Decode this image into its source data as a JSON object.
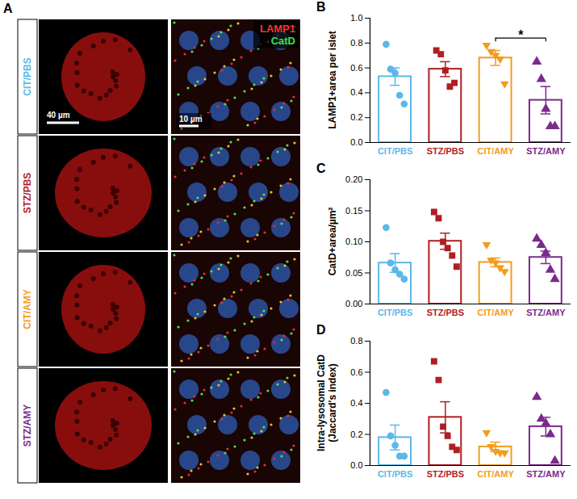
{
  "panel_A": {
    "letter": "A",
    "rows": [
      "CIT/PBS",
      "STZ/PBS",
      "CIT/AMY",
      "STZ/AMY"
    ],
    "row_colors": [
      "#5bb8e8",
      "#b01e23",
      "#f39c1e",
      "#7b2a8c"
    ],
    "stains": [
      {
        "text": "LAMP1",
        "color": "#ff3030"
      },
      {
        "text": "CatD",
        "color": "#40e040"
      }
    ],
    "scale_bars": [
      "40 µm",
      "10 µm"
    ]
  },
  "chart_data": [
    {
      "type": "bar",
      "panel": "B",
      "ylabel": "LAMP1+area per islet",
      "categories": [
        "CIT/PBS",
        "STZ/PBS",
        "CIT/AMY",
        "STZ/AMY"
      ],
      "values": [
        0.53,
        0.59,
        0.68,
        0.34
      ],
      "errors": [
        0.07,
        0.06,
        0.06,
        0.11
      ],
      "points": [
        [
          0.79,
          0.59,
          0.56,
          0.38,
          0.31
        ],
        [
          0.74,
          0.71,
          0.58,
          0.45,
          0.48
        ],
        [
          0.78,
          0.73,
          0.7,
          0.67,
          0.47
        ],
        [
          0.65,
          0.51,
          0.27,
          0.13,
          0.13
        ]
      ],
      "colors": [
        "#5bb8e8",
        "#b01e23",
        "#f39c1e",
        "#7b2a8c"
      ],
      "markers": [
        "circle",
        "square",
        "triangle-down",
        "triangle"
      ],
      "ylim": [
        0,
        1.0
      ],
      "yticks": [
        {
          "value": 0,
          "label": "0.0"
        },
        {
          "value": 0.2,
          "label": "0.2"
        },
        {
          "value": 0.4,
          "label": "0.4"
        },
        {
          "value": 0.6,
          "label": "0.6"
        },
        {
          "value": 0.8,
          "label": "0.8"
        },
        {
          "value": 1.0,
          "label": "1.0"
        }
      ],
      "annotations": [
        {
          "from": "CIT/AMY",
          "to": "STZ/AMY",
          "text": "*"
        }
      ]
    },
    {
      "type": "bar",
      "panel": "C",
      "ylabel": "CatD+area/µm²",
      "categories": [
        "CIT/PBS",
        "STZ/PBS",
        "CIT/AMY",
        "STZ/AMY"
      ],
      "values": [
        0.066,
        0.101,
        0.067,
        0.075
      ],
      "errors": [
        0.015,
        0.013,
        0.007,
        0.01
      ],
      "points": [
        [
          0.123,
          0.066,
          0.055,
          0.048,
          0.04
        ],
        [
          0.148,
          0.138,
          0.1,
          0.09,
          0.078,
          0.06
        ],
        [
          0.095,
          0.07,
          0.066,
          0.058,
          0.052
        ],
        [
          0.105,
          0.095,
          0.082,
          0.055,
          0.04
        ]
      ],
      "colors": [
        "#5bb8e8",
        "#b01e23",
        "#f39c1e",
        "#7b2a8c"
      ],
      "markers": [
        "circle",
        "square",
        "triangle-down",
        "triangle"
      ],
      "ylim": [
        0,
        0.2
      ],
      "yticks": [
        {
          "value": 0,
          "label": "0.00"
        },
        {
          "value": 0.05,
          "label": "0.05"
        },
        {
          "value": 0.1,
          "label": "0.10"
        },
        {
          "value": 0.15,
          "label": "0.15"
        },
        {
          "value": 0.2,
          "label": "0.20"
        }
      ],
      "annotations": []
    },
    {
      "type": "bar",
      "panel": "D",
      "ylabel": "Intra-lysosomal CatD (Jaccard's index)",
      "categories": [
        "CIT/PBS",
        "STZ/PBS",
        "CIT/AMY",
        "STZ/AMY"
      ],
      "values": [
        0.18,
        0.31,
        0.12,
        0.25
      ],
      "errors": [
        0.08,
        0.1,
        0.03,
        0.06
      ],
      "points": [
        [
          0.47,
          0.19,
          0.13,
          0.06,
          0.06
        ],
        [
          0.67,
          0.55,
          0.25,
          0.19,
          0.12,
          0.1
        ],
        [
          0.21,
          0.12,
          0.09,
          0.08,
          0.08
        ],
        [
          0.44,
          0.3,
          0.27,
          0.2,
          0.03
        ]
      ],
      "colors": [
        "#5bb8e8",
        "#b01e23",
        "#f39c1e",
        "#7b2a8c"
      ],
      "markers": [
        "circle",
        "square",
        "triangle-down",
        "triangle"
      ],
      "ylim": [
        0,
        0.8
      ],
      "yticks": [
        {
          "value": 0,
          "label": "0.0"
        },
        {
          "value": 0.2,
          "label": "0.2"
        },
        {
          "value": 0.4,
          "label": "0.4"
        },
        {
          "value": 0.6,
          "label": "0.6"
        },
        {
          "value": 0.8,
          "label": "0.8"
        }
      ],
      "annotations": []
    }
  ]
}
